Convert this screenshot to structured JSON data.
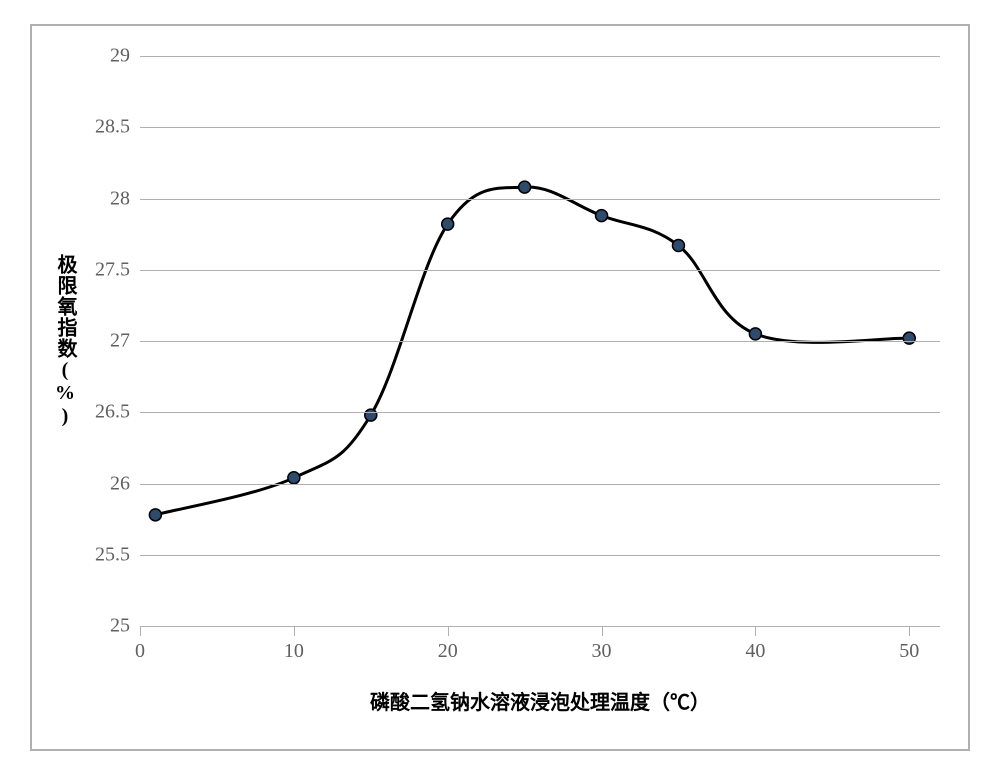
{
  "chart": {
    "type": "line",
    "x_axis_title": "磷酸二氢钠水溶液浸泡处理温度（℃）",
    "y_axis_title": "极限氧指数(%)",
    "x_ticks": [
      0,
      10,
      20,
      30,
      40,
      50
    ],
    "x_tick_labels": [
      "0",
      "10",
      "20",
      "30",
      "40",
      "50"
    ],
    "y_ticks": [
      25,
      25.5,
      26,
      26.5,
      27,
      27.5,
      28,
      28.5,
      29
    ],
    "y_tick_labels": [
      "25",
      "25.5",
      "26",
      "26.5",
      "27",
      "27.5",
      "28",
      "28.5",
      "29"
    ],
    "xlim": [
      0,
      52
    ],
    "ylim": [
      25,
      29
    ],
    "data_x": [
      1,
      10,
      15,
      20,
      25,
      30,
      35,
      40,
      50
    ],
    "data_y": [
      25.78,
      26.04,
      26.48,
      27.82,
      28.08,
      27.88,
      27.67,
      27.05,
      27.02
    ],
    "line_color": "#000000",
    "line_width": 3,
    "marker_fill": "#2e4b6e",
    "marker_stroke": "#000000",
    "marker_radius": 6,
    "gridline_color": "#b0b0b0",
    "tick_font_size": 20,
    "axis_title_font_size": 20,
    "axis_title_color": "#000000",
    "tick_label_color": "#606060",
    "background_color": "#ffffff",
    "panel_border_color": "#b0b0b0"
  }
}
